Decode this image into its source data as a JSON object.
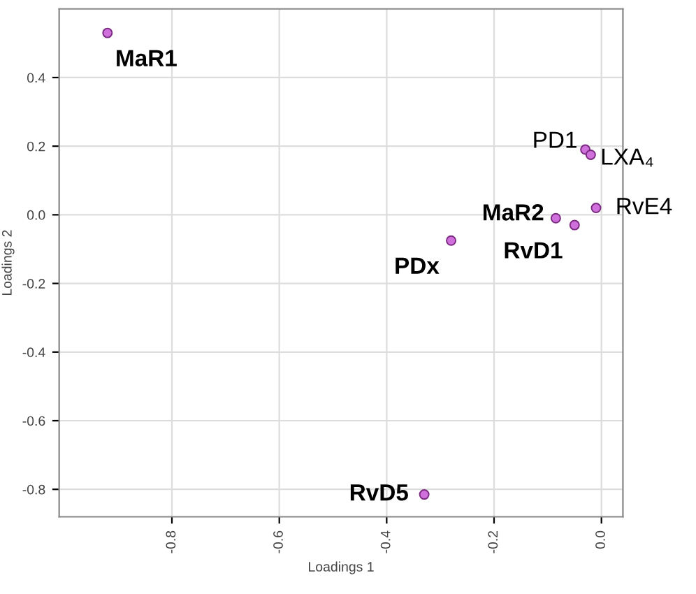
{
  "chart_data": {
    "type": "scatter",
    "xlabel": "Loadings 1",
    "ylabel": "Loadings 2",
    "series": [
      {
        "color": "#d070dc",
        "x": [
          -0.92,
          -0.03,
          -0.02,
          -0.01,
          -0.085,
          -0.05,
          -0.28,
          -0.33
        ],
        "values": [
          0.53,
          0.19,
          0.175,
          0.02,
          -0.01,
          -0.03,
          -0.075,
          -0.815
        ]
      }
    ],
    "annotations": [
      {
        "text": "MaR1",
        "x": -0.92,
        "y": 0.53
      },
      {
        "text": "PD1",
        "x": -0.03,
        "y": 0.19
      },
      {
        "text": "LXA₄",
        "x": -0.02,
        "y": 0.175
      },
      {
        "text": "RvE4",
        "x": -0.01,
        "y": 0.02
      },
      {
        "text": "MaR2",
        "x": -0.085,
        "y": -0.01
      },
      {
        "text": "RvD1",
        "x": -0.05,
        "y": -0.03
      },
      {
        "text": "PDx",
        "x": -0.28,
        "y": -0.075
      },
      {
        "text": "RvD5",
        "x": -0.33,
        "y": -0.815
      }
    ],
    "xlim": [
      -1.01,
      0.04
    ],
    "ylim": [
      -0.88,
      0.6
    ],
    "xticks": [
      {
        "value": -0.8,
        "label": "-0.8"
      },
      {
        "value": -0.6,
        "label": "-0.6"
      },
      {
        "value": -0.4,
        "label": "-0.4"
      },
      {
        "value": -0.2,
        "label": "-0.2"
      },
      {
        "value": 0.0,
        "label": "0.0"
      }
    ],
    "yticks": [
      {
        "value": 0.4,
        "label": "0.4"
      },
      {
        "value": 0.2,
        "label": "0.2"
      },
      {
        "value": 0.0,
        "label": "0.0"
      },
      {
        "value": -0.2,
        "label": "-0.2"
      },
      {
        "value": -0.4,
        "label": "-0.4"
      },
      {
        "value": -0.6,
        "label": "-0.6"
      },
      {
        "value": -0.8,
        "label": "-0.8"
      }
    ],
    "grid": true,
    "marker": "circle",
    "legend": false
  }
}
